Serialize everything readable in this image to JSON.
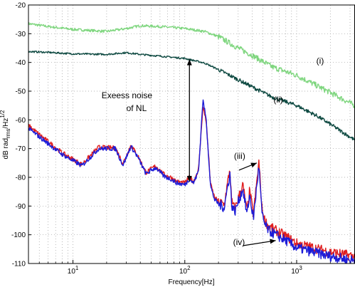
{
  "chart_data": {
    "type": "line",
    "xscale": "log",
    "xlim": [
      4,
      3300
    ],
    "ylim": [
      -110,
      -20
    ],
    "grid": true,
    "xlabel": "Frequency[Hz]",
    "ylabel": {
      "main": "dB rad",
      "sub": "rms",
      "tail": "/Hz",
      "sup": "1/2"
    },
    "xticks": [
      {
        "value": 10,
        "base": "10",
        "exp": "1"
      },
      {
        "value": 100,
        "base": "10",
        "exp": "2"
      },
      {
        "value": 1000,
        "base": "10",
        "exp": "3"
      }
    ],
    "yticks": [
      -20,
      -30,
      -40,
      -50,
      -60,
      -70,
      -80,
      -90,
      -100,
      -110
    ],
    "series": [
      {
        "color": "#7fd67f",
        "noise": 0.9,
        "x": [
          4,
          6,
          10,
          20,
          30,
          40,
          60,
          100,
          150,
          200,
          300,
          400,
          600,
          1000,
          1500,
          2000,
          3300
        ],
        "y": [
          -26.5,
          -27.5,
          -28.5,
          -29.2,
          -28.2,
          -27.2,
          -27.5,
          -28.2,
          -29.2,
          -31,
          -35,
          -37.5,
          -41.5,
          -44.5,
          -48,
          -50.5,
          -55
        ]
      },
      {
        "color": "#0f4a42",
        "noise": 0.6,
        "x": [
          4,
          6,
          10,
          20,
          30,
          40,
          60,
          100,
          150,
          200,
          300,
          400,
          600,
          1000,
          1500,
          2000,
          3300
        ],
        "y": [
          -36.2,
          -36.5,
          -37,
          -37.2,
          -36.6,
          -37.2,
          -37.8,
          -38.6,
          -40.2,
          -42.5,
          -46,
          -48.5,
          -52,
          -55,
          -58.5,
          -61.5,
          -67
        ]
      },
      {
        "color": "#e02020",
        "noise": 1.6,
        "x": [
          4,
          8,
          12,
          17,
          24,
          28,
          33,
          38,
          45,
          55,
          65,
          75,
          85,
          100,
          110,
          120,
          133,
          145,
          155,
          170,
          185,
          200,
          225,
          253,
          262,
          280,
          330,
          360,
          380,
          410,
          460,
          490,
          520,
          560,
          650,
          800,
          1000,
          1400,
          2000,
          3300
        ],
        "y": [
          -62,
          -71.5,
          -75.5,
          -69.5,
          -69.8,
          -75.2,
          -68.8,
          -72.5,
          -78.3,
          -76,
          -79,
          -80,
          -81.5,
          -82,
          -80,
          -81.5,
          -77,
          -55.5,
          -60,
          -82.5,
          -87,
          -88.5,
          -89.5,
          -77,
          -88.5,
          -91,
          -82.5,
          -92,
          -84.5,
          -93,
          -74.5,
          -91,
          -95,
          -97,
          -98.5,
          -100.5,
          -103,
          -104.5,
          -106,
          -107.5
        ]
      },
      {
        "color": "#1c1cd8",
        "noise": 1.6,
        "x": [
          4,
          8,
          12,
          17,
          24,
          28,
          33,
          38,
          45,
          55,
          65,
          75,
          85,
          100,
          110,
          120,
          133,
          145,
          155,
          170,
          185,
          200,
          225,
          253,
          262,
          280,
          330,
          360,
          380,
          410,
          460,
          490,
          520,
          560,
          650,
          800,
          1000,
          1400,
          2000,
          3300
        ],
        "y": [
          -63,
          -72,
          -76,
          -70,
          -70,
          -75.8,
          -69.2,
          -73,
          -78.8,
          -76.6,
          -79.6,
          -80.6,
          -82,
          -82.6,
          -80.6,
          -82,
          -77.6,
          -53,
          -59.5,
          -83.2,
          -87.8,
          -89.2,
          -90.5,
          -78.5,
          -89.5,
          -92,
          -84,
          -93,
          -86,
          -94.5,
          -76,
          -93,
          -96.5,
          -98.5,
          -100,
          -102,
          -104.5,
          -106,
          -107.5,
          -109
        ]
      }
    ],
    "annotations": [
      {
        "text": "Exeess noise",
        "x": 18,
        "y": -52.5
      },
      {
        "text": "of NL",
        "x": 30,
        "y": -57
      },
      {
        "text": "(i)",
        "x": 1500,
        "y": -40.5
      },
      {
        "text": "(ii)",
        "x": 620,
        "y": -54
      },
      {
        "text": "(iii)",
        "x": 275,
        "y": -73.5
      },
      {
        "text": "(iv)",
        "x": 270,
        "y": -103.5
      }
    ],
    "arrows": [
      {
        "x1": 110,
        "y1": -39,
        "x2": 110,
        "y2": -81.5,
        "double": true
      },
      {
        "x1": 305,
        "y1": -77.5,
        "x2": 440,
        "y2": -75,
        "double": false
      },
      {
        "x1": 330,
        "y1": -103.8,
        "x2": 650,
        "y2": -102,
        "double": false
      }
    ]
  }
}
